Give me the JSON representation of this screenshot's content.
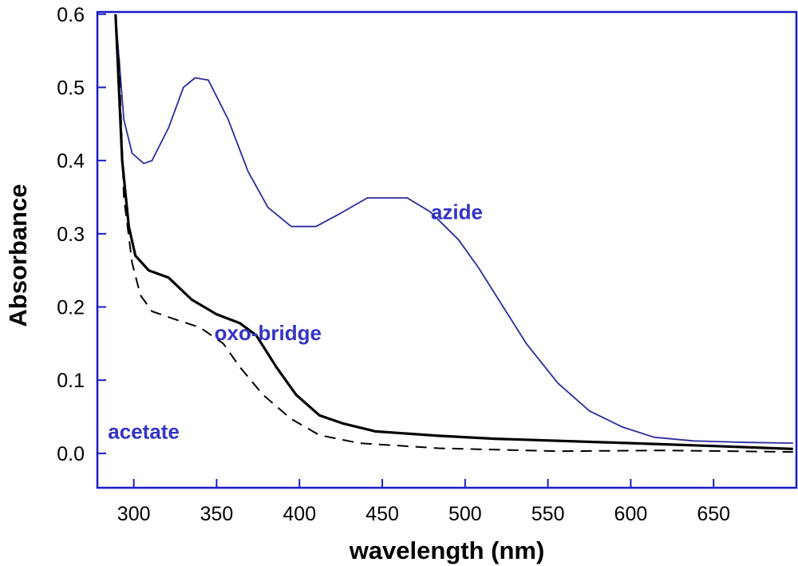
{
  "chart_data": {
    "type": "line",
    "title": "",
    "xlabel": "wavelength (nm)",
    "ylabel": "Absorbance",
    "xlim": [
      278,
      700
    ],
    "ylim": [
      -0.047,
      0.603
    ],
    "xticks": [
      300,
      350,
      400,
      450,
      500,
      550,
      600,
      650
    ],
    "xtick_labels": [
      "300",
      "350",
      "400",
      "450",
      "500",
      "550",
      "600",
      "650"
    ],
    "yticks": [
      0.0,
      0.1,
      0.2,
      0.3,
      0.4,
      0.5,
      0.6
    ],
    "ytick_labels": [
      "0.0",
      "0.1",
      "0.2",
      "0.3",
      "0.4",
      "0.5",
      "0.6"
    ],
    "grid": false,
    "axis_color": "#1a1ac8",
    "series": [
      {
        "name": "azide",
        "color": "#2b2b9c",
        "style": "solid",
        "x": [
          289,
          294,
          299,
          306,
          311,
          321,
          330,
          337,
          345,
          357,
          369,
          381,
          395,
          410,
          424,
          441,
          465,
          479,
          496,
          508,
          523,
          537,
          556,
          575,
          595,
          614,
          638,
          670,
          698
        ],
        "y": [
          0.6,
          0.456,
          0.41,
          0.396,
          0.4,
          0.445,
          0.5,
          0.513,
          0.51,
          0.456,
          0.385,
          0.336,
          0.31,
          0.31,
          0.327,
          0.349,
          0.349,
          0.33,
          0.292,
          0.254,
          0.2,
          0.15,
          0.096,
          0.058,
          0.036,
          0.022,
          0.017,
          0.015,
          0.014
        ]
      },
      {
        "name": "oxo-bridge",
        "color": "#000000",
        "style": "solid-thick",
        "x": [
          289,
          290,
          293,
          297,
          301,
          309,
          321,
          335,
          350,
          364,
          374,
          386,
          398,
          412,
          426,
          446,
          484,
          518,
          600,
          650,
          698
        ],
        "y": [
          0.6,
          0.55,
          0.4,
          0.31,
          0.27,
          0.25,
          0.24,
          0.21,
          0.19,
          0.178,
          0.161,
          0.118,
          0.08,
          0.052,
          0.041,
          0.03,
          0.024,
          0.02,
          0.014,
          0.01,
          0.006
        ]
      },
      {
        "name": "acetate",
        "color": "#000000",
        "style": "dashed",
        "x": [
          291,
          294,
          299,
          304,
          311,
          325,
          340,
          354,
          364,
          378,
          395,
          412,
          436,
          484,
          556,
          620,
          698
        ],
        "y": [
          0.54,
          0.35,
          0.26,
          0.216,
          0.194,
          0.183,
          0.172,
          0.15,
          0.118,
          0.08,
          0.047,
          0.025,
          0.014,
          0.007,
          0.003,
          0.004,
          0.002
        ]
      }
    ],
    "annotations": [
      {
        "text": "azide",
        "x": 495,
        "y": 0.32
      },
      {
        "text": "oxo-bridge",
        "x": 381,
        "y": 0.155
      },
      {
        "text": "acetate",
        "x": 306,
        "y": 0.02
      }
    ]
  }
}
